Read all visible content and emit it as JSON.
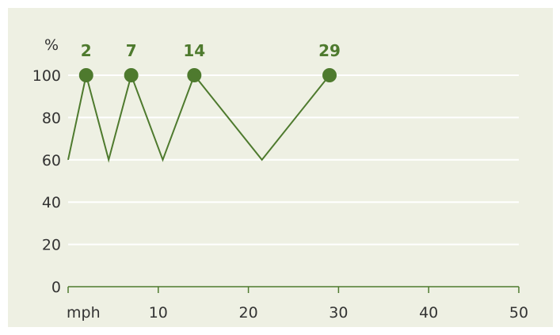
{
  "chart_data": {
    "type": "line",
    "ylabel": "%",
    "xlabel": "mph",
    "x_ticks": [
      10,
      20,
      30,
      40,
      50
    ],
    "y_ticks": [
      0,
      20,
      40,
      60,
      80,
      100
    ],
    "xlim": [
      0,
      50
    ],
    "ylim": [
      0,
      100
    ],
    "grid": true,
    "series": [
      {
        "x": [
          0,
          2,
          4.5,
          7,
          10.5,
          14,
          21.5,
          29
        ],
        "y": [
          60,
          100,
          60,
          100,
          60,
          100,
          60,
          100
        ]
      }
    ],
    "annotations": [
      {
        "x": 2,
        "y": 100,
        "label": "2"
      },
      {
        "x": 7,
        "y": 100,
        "label": "7"
      },
      {
        "x": 14,
        "y": 100,
        "label": "14"
      },
      {
        "x": 29,
        "y": 100,
        "label": "29"
      }
    ]
  },
  "colors": {
    "background": "#eef0e3",
    "line": "#4e7a2e",
    "marker": "#4e7a2e",
    "label": "#4e7a2e",
    "grid": "#ffffff",
    "axis": "#4e7a2e",
    "text": "#333333"
  }
}
